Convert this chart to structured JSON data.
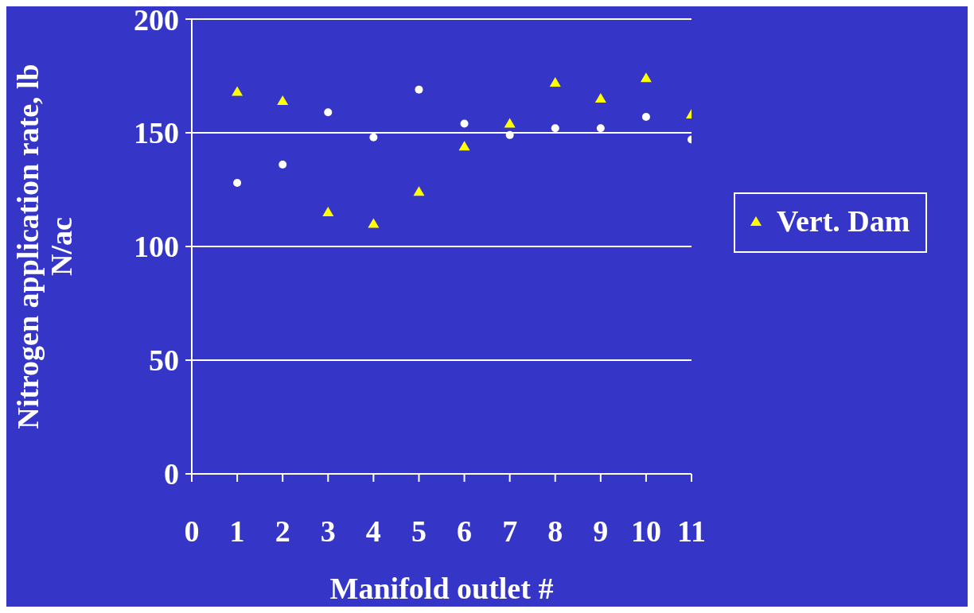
{
  "chart_data": {
    "type": "scatter",
    "xlabel": "Manifold outlet #",
    "ylabel": "Nitrogen application rate, lb N/ac",
    "x": [
      1,
      2,
      3,
      4,
      5,
      6,
      7,
      8,
      9,
      10,
      11
    ],
    "xlim": [
      0,
      11
    ],
    "xticks": [
      0,
      1,
      2,
      3,
      4,
      5,
      6,
      7,
      8,
      9,
      10,
      11
    ],
    "ylim": [
      0,
      200
    ],
    "yticks": [
      0,
      50,
      100,
      150,
      200
    ],
    "grid": "y",
    "legend": "right",
    "series": [
      {
        "color": "#ffffff",
        "marker": "circle",
        "values": [
          128,
          136,
          159,
          148,
          169,
          154,
          149,
          152,
          152,
          157,
          147
        ]
      },
      {
        "name": "Vert. Dam",
        "color": "#ffff00",
        "marker": "triangle",
        "values": [
          168,
          164,
          115,
          110,
          124,
          144,
          154,
          172,
          165,
          174,
          158
        ]
      }
    ]
  }
}
